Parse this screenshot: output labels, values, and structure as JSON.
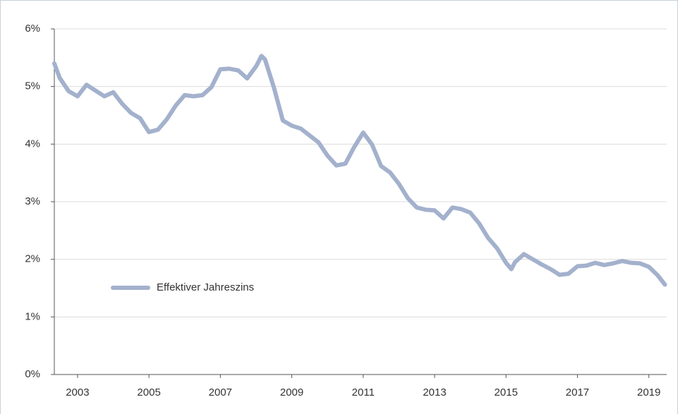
{
  "chart_data": {
    "type": "line",
    "x": [
      2002.35,
      2002.5,
      2002.75,
      2003.0,
      2003.25,
      2003.5,
      2003.75,
      2004.0,
      2004.25,
      2004.5,
      2004.75,
      2005.0,
      2005.25,
      2005.5,
      2005.75,
      2006.0,
      2006.25,
      2006.5,
      2006.75,
      2007.0,
      2007.25,
      2007.5,
      2007.75,
      2008.0,
      2008.15,
      2008.25,
      2008.5,
      2008.75,
      2009.0,
      2009.25,
      2009.5,
      2009.75,
      2010.0,
      2010.25,
      2010.5,
      2010.75,
      2011.0,
      2011.25,
      2011.5,
      2011.75,
      2012.0,
      2012.25,
      2012.5,
      2012.75,
      2013.0,
      2013.25,
      2013.5,
      2013.75,
      2014.0,
      2014.25,
      2014.5,
      2014.75,
      2015.0,
      2015.15,
      2015.25,
      2015.5,
      2015.75,
      2016.0,
      2016.25,
      2016.5,
      2016.75,
      2017.0,
      2017.25,
      2017.5,
      2017.75,
      2018.0,
      2018.25,
      2018.5,
      2018.75,
      2019.0,
      2019.25,
      2019.45
    ],
    "series": [
      {
        "name": "Effektiver Jahreszins",
        "color": "#a3b1cd",
        "values": [
          5.4,
          5.15,
          4.92,
          4.83,
          5.03,
          4.93,
          4.83,
          4.9,
          4.7,
          4.54,
          4.45,
          4.21,
          4.25,
          4.43,
          4.67,
          4.85,
          4.83,
          4.85,
          4.99,
          5.3,
          5.31,
          5.28,
          5.14,
          5.35,
          5.53,
          5.47,
          4.98,
          4.41,
          4.32,
          4.27,
          4.15,
          4.03,
          3.8,
          3.63,
          3.66,
          3.95,
          4.2,
          3.99,
          3.62,
          3.51,
          3.31,
          3.06,
          2.9,
          2.86,
          2.85,
          2.71,
          2.9,
          2.87,
          2.81,
          2.62,
          2.37,
          2.19,
          1.94,
          1.83,
          1.95,
          2.09,
          2.0,
          1.91,
          1.83,
          1.73,
          1.75,
          1.88,
          1.89,
          1.94,
          1.9,
          1.93,
          1.97,
          1.94,
          1.93,
          1.87,
          1.72,
          1.56
        ]
      }
    ],
    "xlim": [
      2002.35,
      2019.5
    ],
    "xticks": [
      2003,
      2005,
      2007,
      2009,
      2011,
      2013,
      2015,
      2017,
      2019
    ],
    "ylim": [
      0,
      6
    ],
    "yticks": [
      {
        "value": 0,
        "label": "0%"
      },
      {
        "value": 1,
        "label": "1%"
      },
      {
        "value": 2,
        "label": "2%"
      },
      {
        "value": 3,
        "label": "3%"
      },
      {
        "value": 4,
        "label": "4%"
      },
      {
        "value": 5,
        "label": "5%"
      },
      {
        "value": 6,
        "label": "6%"
      }
    ],
    "grid": true,
    "legend": "left"
  }
}
